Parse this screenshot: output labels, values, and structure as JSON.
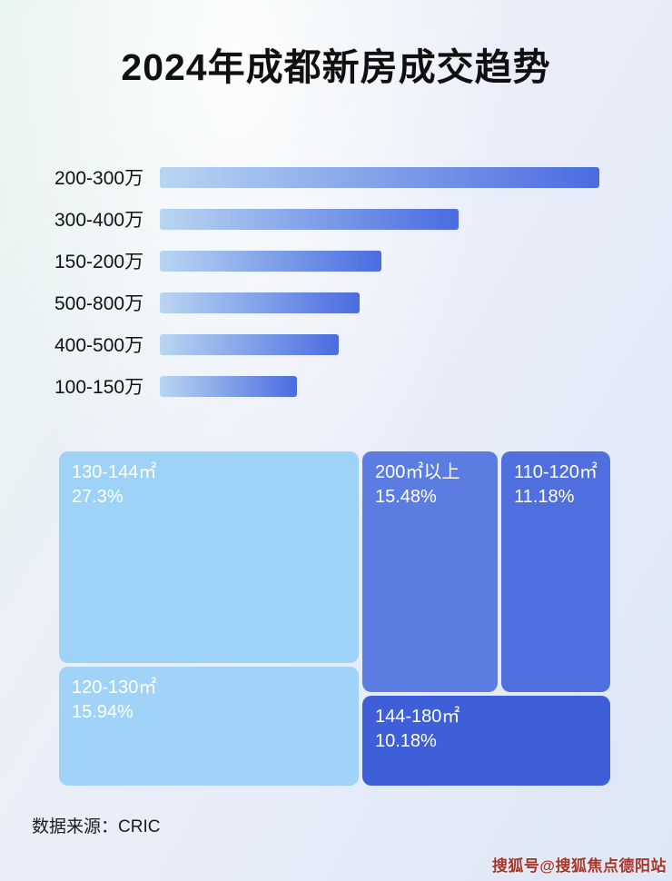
{
  "title": "2024年成都新房成交趋势",
  "source": "数据来源：CRIC",
  "watermark": "搜狐号@搜狐焦点德阳站",
  "colors": {
    "bar_gradient_start": "#b9d6f2",
    "bar_gradient_end": "#4a6ce0",
    "background_mint": "#e6f4ee",
    "background_periwinkle": "#dde7f6",
    "title_color": "#101010",
    "watermark_color": "#a8352a"
  },
  "chart_data": [
    {
      "type": "bar",
      "orientation": "horizontal",
      "title": "2024年成都新房成交趋势",
      "categories": [
        "200-300万",
        "300-400万",
        "150-200万",
        "500-800万",
        "400-500万",
        "100-150万"
      ],
      "values_relative_pct": [
        100,
        68,
        50.5,
        45.4,
        40.6,
        31.3
      ],
      "axis_labels_shown": false,
      "grid": false,
      "legend": false,
      "bar_color_start": "#b9d6f2",
      "bar_color_end": "#4a6ce0"
    },
    {
      "type": "heatmap",
      "subtype": "treemap",
      "items": [
        {
          "label": "130-144㎡",
          "percent": "27.3%",
          "value": 27.3,
          "color": "#9ed2f6"
        },
        {
          "label": "200㎡以上",
          "percent": "15.48%",
          "value": 15.48,
          "color": "#5b7de2"
        },
        {
          "label": "110-120㎡",
          "percent": "11.18%",
          "value": 11.18,
          "color": "#4f6fde"
        },
        {
          "label": "120-130㎡",
          "percent": "15.94%",
          "value": 15.94,
          "color": "#a0d3f7"
        },
        {
          "label": "144-180㎡",
          "percent": "10.18%",
          "value": 10.18,
          "color": "#3e5fd8"
        }
      ]
    }
  ]
}
